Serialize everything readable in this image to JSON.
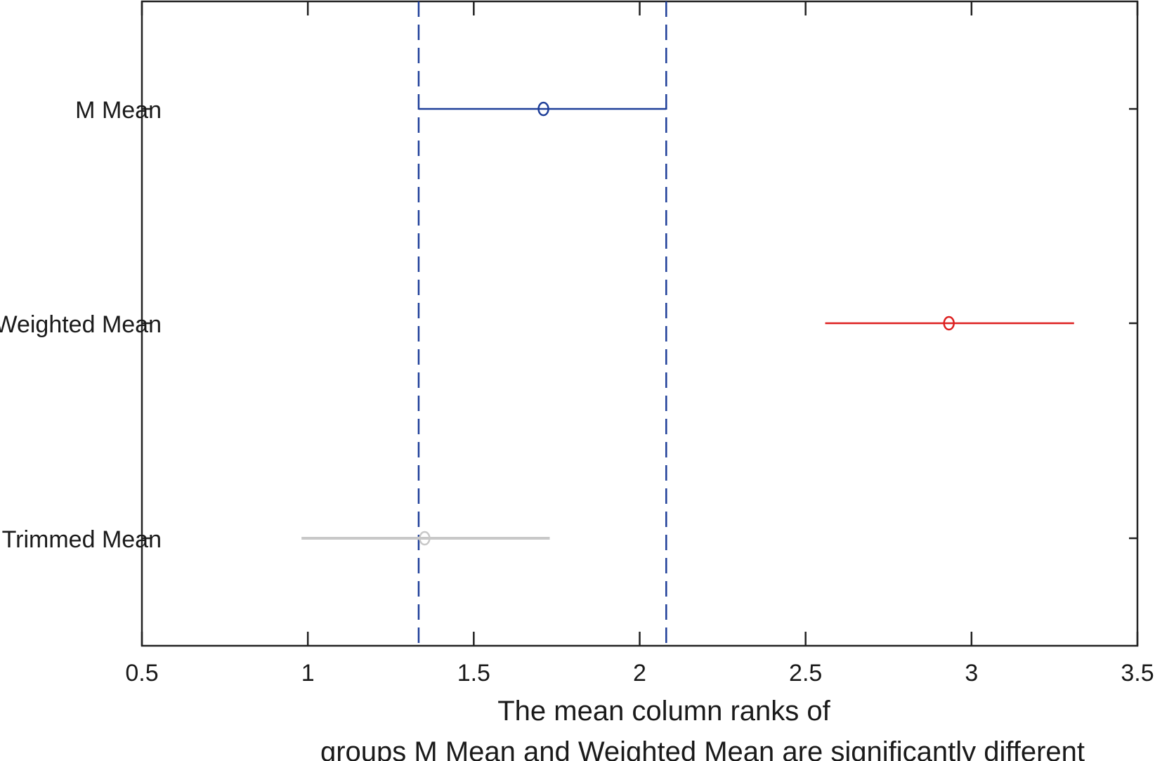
{
  "chart_data": {
    "type": "interval",
    "title": "",
    "xlabel": "The mean column ranks of groups M Mean and Weighted Mean are significantly different",
    "xlabel_lines": [
      "The mean column ranks of",
      "groups M Mean and Weighted Mean are significantly different"
    ],
    "ylabel": "",
    "xlim": [
      0.5,
      3.5
    ],
    "xticks": [
      "0.5",
      "1",
      "1.5",
      "2",
      "2.5",
      "3",
      "3.5"
    ],
    "grid": false,
    "groups": [
      {
        "name": "M Mean",
        "center": 1.71,
        "low": 1.334,
        "high": 2.08,
        "color": "#1f3f99"
      },
      {
        "name": "Weighted Mean",
        "center": 2.932,
        "low": 2.559,
        "high": 3.309,
        "color": "#dd1f1f"
      },
      {
        "name": "Trimmed Mean",
        "center": 1.352,
        "low": 0.981,
        "high": 1.729,
        "color": "#c8c8c8"
      }
    ],
    "reference_lines": {
      "values": [
        1.334,
        2.08
      ],
      "style": "dashed",
      "color": "#1f3f99"
    }
  }
}
